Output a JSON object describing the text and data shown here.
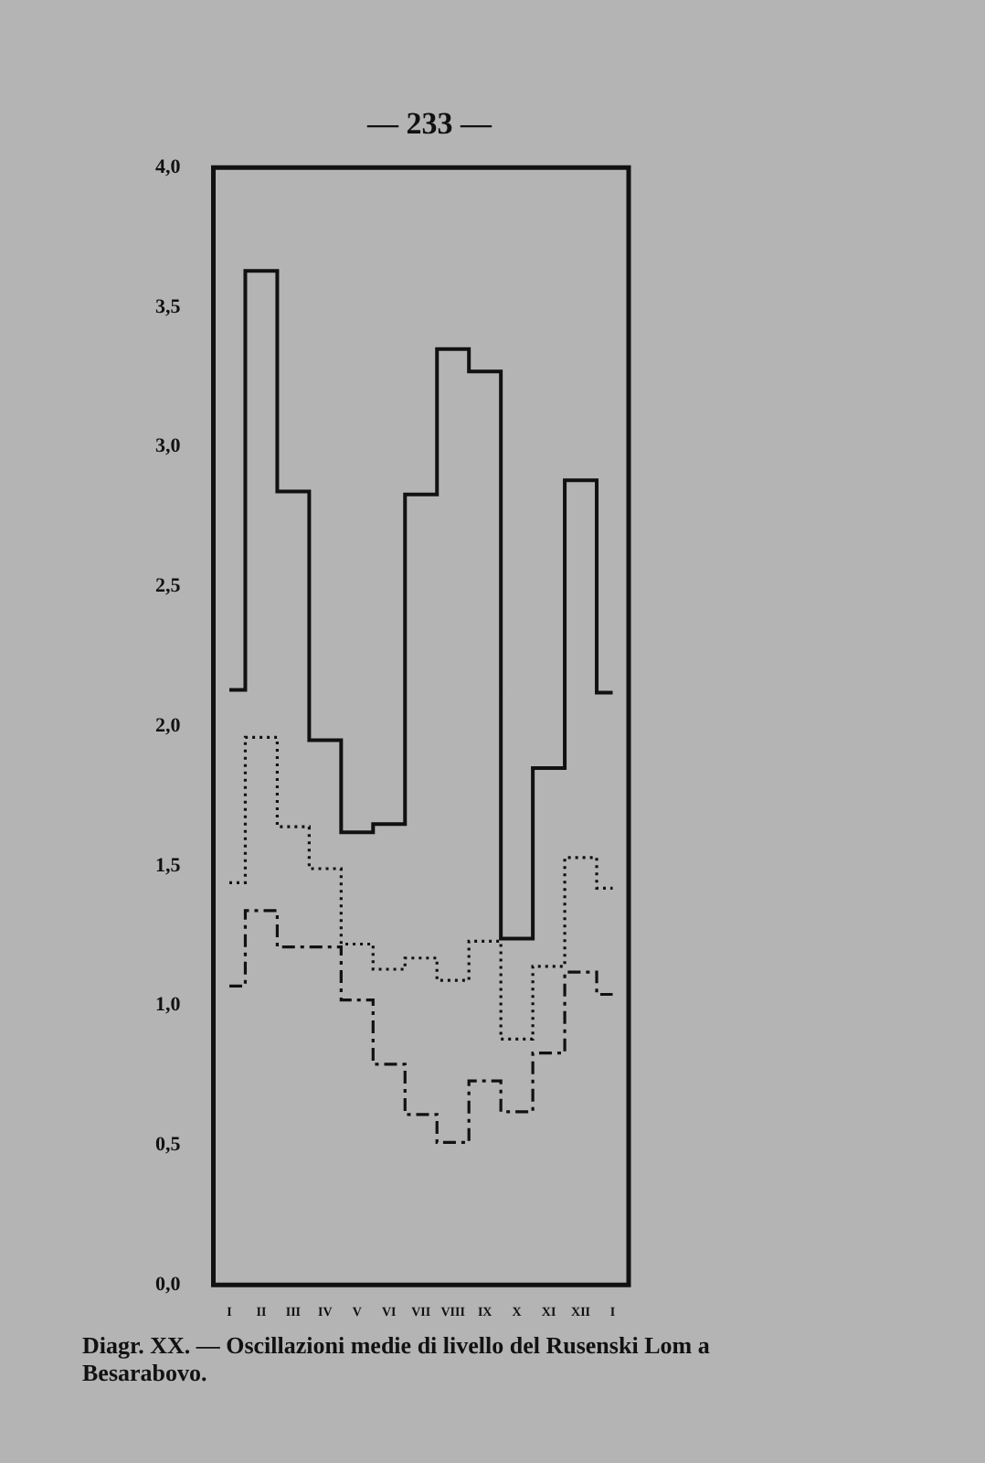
{
  "chart_data": {
    "type": "step",
    "title": "Diagr. XX. — Oscillazioni medie di livello del Rusenski Lom a Besarabovo.",
    "annotations": [
      "— 233 —"
    ],
    "categories": [
      "I",
      "II",
      "III",
      "IV",
      "V",
      "VI",
      "VII",
      "VIII",
      "IX",
      "X",
      "XI",
      "XII",
      "I"
    ],
    "series": [
      {
        "color": "#111111",
        "line_style": "solid",
        "values": [
          2.13,
          3.63,
          2.84,
          1.95,
          1.62,
          1.65,
          2.83,
          3.35,
          3.27,
          1.24,
          1.85,
          2.88,
          2.12
        ]
      },
      {
        "color": "#111111",
        "line_style": "dotted",
        "values": [
          1.44,
          1.96,
          1.64,
          1.49,
          1.22,
          1.13,
          1.17,
          1.09,
          1.23,
          0.88,
          1.14,
          1.53,
          1.42
        ]
      },
      {
        "color": "#111111",
        "line_style": "dashed",
        "values": [
          1.07,
          1.34,
          1.21,
          1.21,
          1.02,
          0.79,
          0.61,
          0.51,
          0.73,
          0.62,
          0.83,
          1.12,
          1.04
        ]
      }
    ],
    "ylim": [
      0,
      4
    ],
    "yticks": [
      {
        "value": 0,
        "label": "0,0"
      },
      {
        "value": 0.5,
        "label": "0,5"
      },
      {
        "value": 1,
        "label": "1,0"
      },
      {
        "value": 1.5,
        "label": "1,5"
      },
      {
        "value": 2,
        "label": "2,0"
      },
      {
        "value": 2.5,
        "label": "2,5"
      },
      {
        "value": 3,
        "label": "3,0"
      },
      {
        "value": 3.5,
        "label": "3,5"
      },
      {
        "value": 4,
        "label": "4,0"
      }
    ],
    "grid": false,
    "legend": false
  }
}
